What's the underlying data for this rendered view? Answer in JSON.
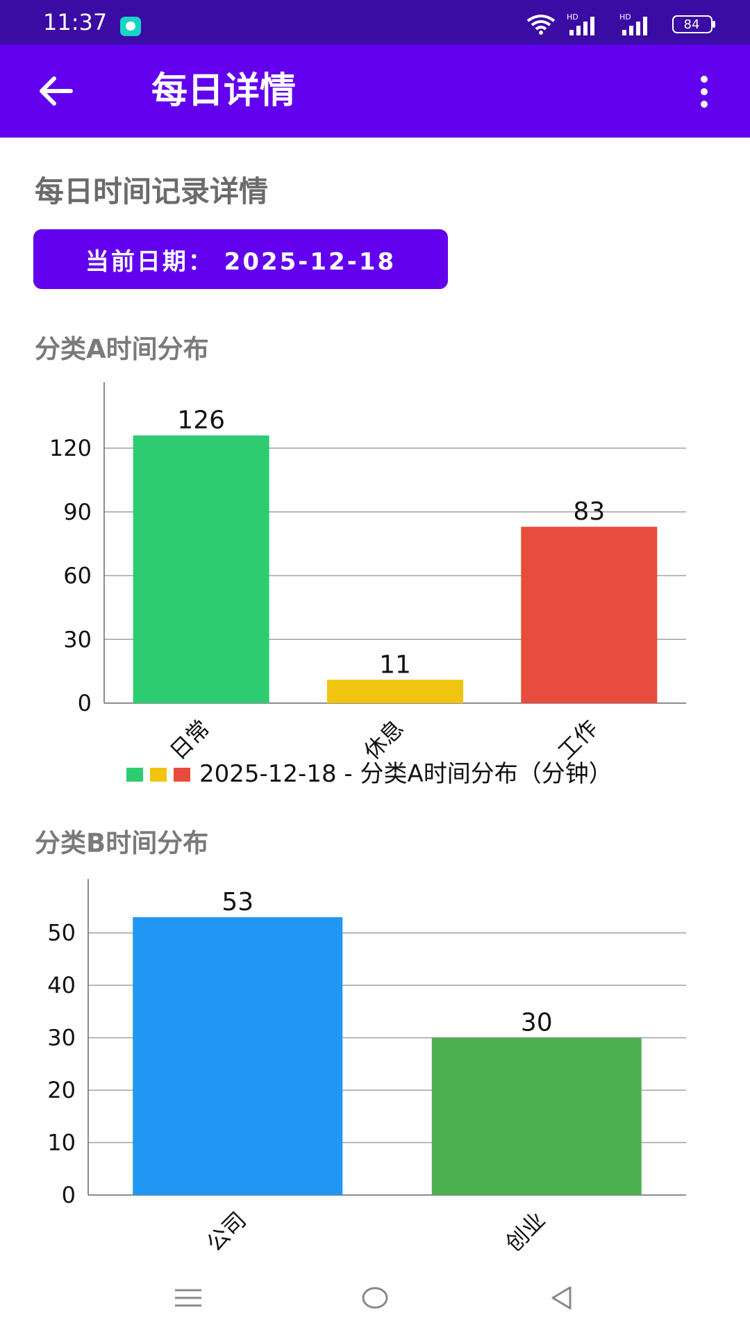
{
  "status_bar": {
    "time": "11:37",
    "battery": "84",
    "signal_label_1": "HD",
    "signal_label_2": "HD"
  },
  "app_bar": {
    "title": "每日详情",
    "back_icon": "arrow-left-icon",
    "menu_icon": "more-vert-icon"
  },
  "page": {
    "title": "每日时间记录详情",
    "date_button": "当前日期：  2025-12-18"
  },
  "sections": [
    {
      "title": "分类A时间分布"
    },
    {
      "title": "分类B时间分布"
    }
  ],
  "chart_data": [
    {
      "type": "bar",
      "categories": [
        "日常",
        "休息",
        "工作"
      ],
      "values": [
        126,
        11,
        83
      ],
      "colors": [
        "#2ecc71",
        "#f1c40f",
        "#e74c3c"
      ],
      "ylim": [
        0,
        138
      ],
      "yticks": [
        0,
        30,
        60,
        90,
        120
      ],
      "grid": true,
      "legend": "2025-12-18 - 分类A时间分布（分钟）",
      "legend_position": "bottom"
    },
    {
      "type": "bar",
      "categories": [
        "公司",
        "创业"
      ],
      "values": [
        53,
        30
      ],
      "colors": [
        "#2196f3",
        "#4caf50"
      ],
      "ylim": [
        0,
        55
      ],
      "yticks": [
        0,
        10,
        20,
        30,
        40,
        50
      ],
      "grid": true
    }
  ]
}
